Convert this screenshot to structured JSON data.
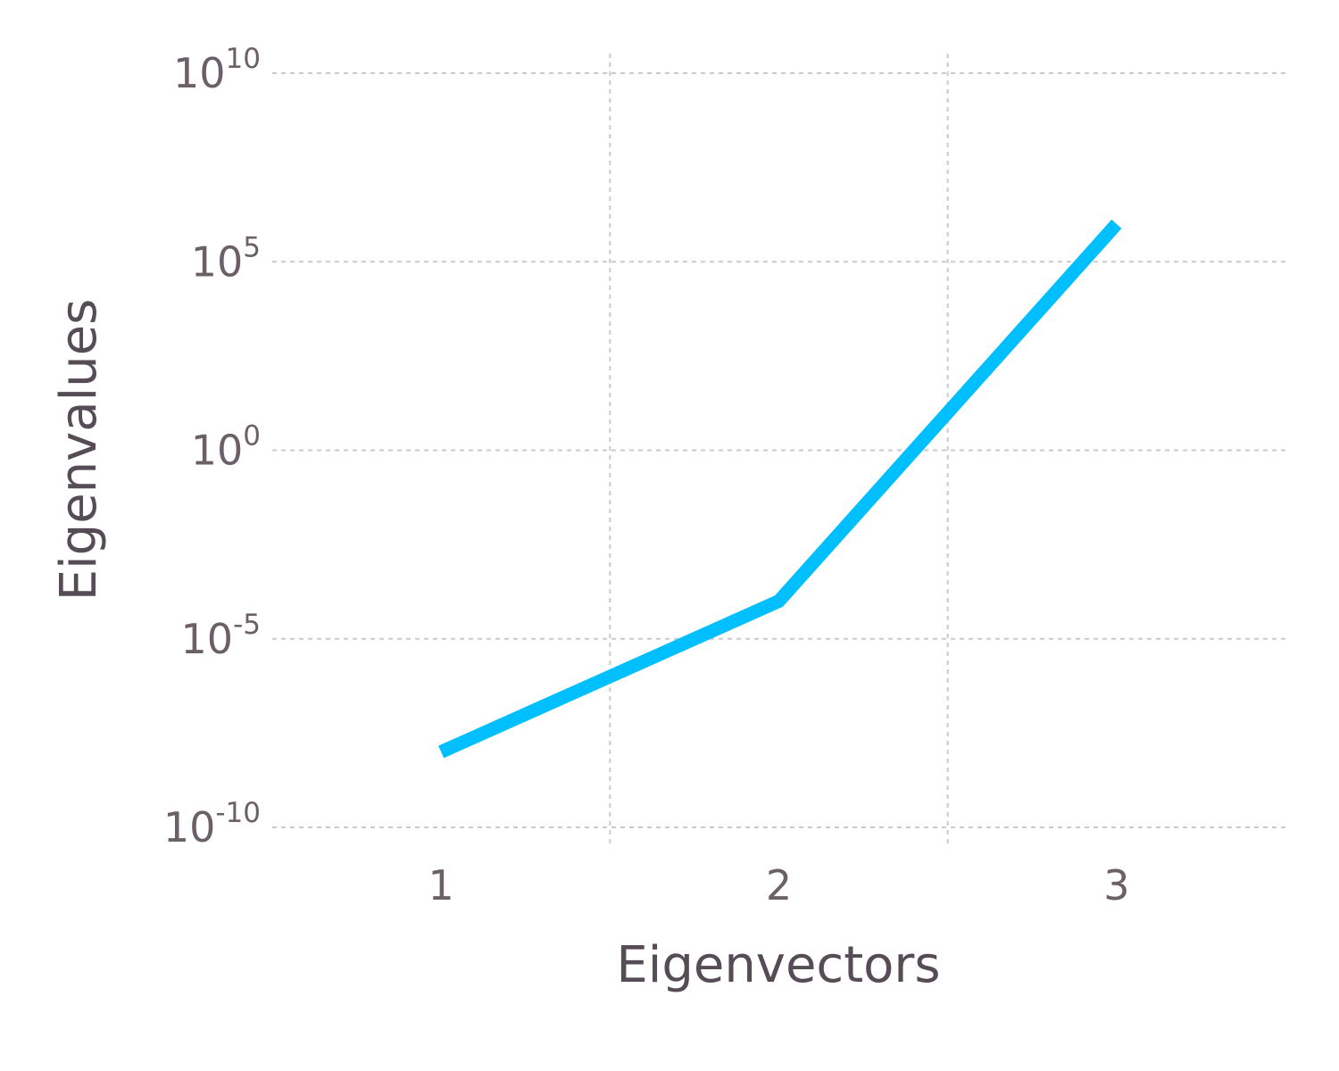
{
  "chart_data": {
    "type": "line",
    "xlabel": "Eigenvectors",
    "ylabel": "Eigenvalues",
    "x": [
      1,
      2,
      3
    ],
    "series": [
      {
        "values": [
          1e-08,
          0.0001,
          1000000
        ],
        "color": "#00bfff"
      }
    ],
    "xlim": [
      0.5,
      3.5
    ],
    "ylim": [
      1e-10,
      10000000000.0
    ],
    "yscale": "log",
    "xticks": [
      1,
      2,
      3
    ],
    "xtick_labels": [
      "1",
      "2",
      "3"
    ],
    "x_gridlines": [
      1.5,
      2.5
    ],
    "yticks": [
      {
        "base": "10",
        "exponent": "-10",
        "value": 1e-10
      },
      {
        "base": "10",
        "exponent": "-5",
        "value": 1e-05
      },
      {
        "base": "10",
        "exponent": "0",
        "value": 1
      },
      {
        "base": "10",
        "exponent": "5",
        "value": 100000
      },
      {
        "base": "10",
        "exponent": "10",
        "value": 10000000000
      }
    ],
    "grid": true,
    "legend": "none"
  }
}
